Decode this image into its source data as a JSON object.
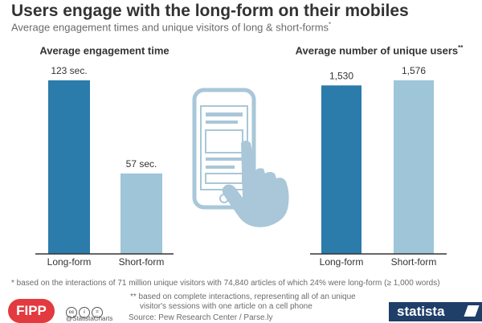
{
  "header": {
    "title": "Users engage with the long-form on their mobiles",
    "subtitle": "Average engagement times and unique visitors of long & short-forms",
    "subtitle_mark": "*"
  },
  "colors": {
    "dark_bar": "#2b7bab",
    "light_bar": "#9ec5d8",
    "axis": "#333333",
    "illustration": "#a9c7d8"
  },
  "chart_data": [
    {
      "type": "bar",
      "title": "Average engagement time",
      "title_mark": "",
      "categories": [
        "Long-form",
        "Short-form"
      ],
      "values": [
        123,
        57
      ],
      "value_labels": [
        "123 sec.",
        "57 sec."
      ],
      "bar_colors": [
        "#2b7bab",
        "#9ec5d8"
      ],
      "ylim": [
        0,
        123
      ],
      "grid": false,
      "legend": "none"
    },
    {
      "type": "bar",
      "title": "Average number of unique users",
      "title_mark": "**",
      "categories": [
        "Long-form",
        "Short-form"
      ],
      "values": [
        1530,
        1576
      ],
      "value_labels": [
        "1,530",
        "1,576"
      ],
      "bar_colors": [
        "#2b7bab",
        "#9ec5d8"
      ],
      "ylim": [
        0,
        1576
      ],
      "grid": false,
      "legend": "none"
    }
  ],
  "illustration": {
    "icon": "phone-tap-icon"
  },
  "footnotes": {
    "note1": "* based on the interactions of 71 million unique visitors with 74,840 articles of which 24% were long-form (≥ 1,000 words)",
    "note2_line1": "** based on complete interactions, representing all of an unique",
    "note2_line2": "visitor's sessions with one article on a cell phone"
  },
  "footer": {
    "fipp_logo": "FIPP",
    "handle": "@StatistaCharts",
    "source": "Source: Pew Research Center / Parse.ly",
    "statista_logo": "statista"
  }
}
